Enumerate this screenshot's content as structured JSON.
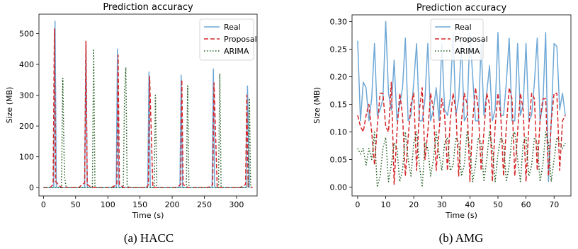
{
  "chart_data": [
    {
      "type": "line",
      "title": "Prediction accuracy",
      "xlabel": "Time (s)",
      "ylabel": "Size (MB)",
      "caption": "(a) HACC",
      "xlim": [
        -7,
        332
      ],
      "ylim": [
        -27,
        563
      ],
      "xticks": [
        0,
        50,
        100,
        150,
        200,
        250,
        300
      ],
      "yticks": [
        0,
        100,
        200,
        300,
        400,
        500
      ],
      "grid": false,
      "legend": "top-right",
      "series": [
        {
          "name": "Real",
          "color": "#6fa8d6",
          "dash": "solid",
          "x": [
            0,
            16,
            18,
            20,
            64,
            66,
            68,
            113,
            115,
            117,
            162,
            164,
            166,
            212,
            214,
            216,
            262,
            264,
            266,
            315,
            317,
            320
          ],
          "y": [
            0,
            0,
            540,
            0,
            0,
            470,
            0,
            0,
            450,
            0,
            0,
            375,
            0,
            0,
            365,
            0,
            0,
            385,
            0,
            0,
            330,
            0
          ]
        },
        {
          "name": "Proposal",
          "color": "#d62728",
          "dash": "dashed",
          "x": [
            0,
            10,
            15,
            17,
            19,
            25,
            30,
            55,
            60,
            64,
            66,
            68,
            75,
            105,
            110,
            114,
            116,
            118,
            125,
            160,
            163,
            165,
            170,
            205,
            210,
            213,
            215,
            217,
            225,
            255,
            260,
            263,
            265,
            270,
            305,
            310,
            314,
            316,
            318,
            325
          ],
          "y": [
            0,
            0,
            10,
            515,
            20,
            5,
            0,
            0,
            10,
            15,
            475,
            10,
            0,
            0,
            5,
            12,
            430,
            10,
            0,
            0,
            10,
            360,
            0,
            0,
            5,
            10,
            350,
            10,
            0,
            0,
            5,
            10,
            340,
            0,
            0,
            5,
            10,
            300,
            5,
            0
          ]
        },
        {
          "name": "ARIMA",
          "color": "#1e5a1e",
          "dash": "dotted",
          "x": [
            0,
            28,
            30,
            32,
            33,
            35,
            37,
            76,
            78,
            80,
            82,
            124,
            126,
            128,
            129,
            130,
            132,
            172,
            174,
            176,
            178,
            222,
            224,
            226,
            228,
            272,
            274,
            276,
            278,
            318,
            320,
            322
          ],
          "y": [
            0,
            0,
            355,
            110,
            30,
            5,
            0,
            0,
            450,
            5,
            0,
            0,
            300,
            390,
            200,
            10,
            0,
            0,
            300,
            5,
            0,
            0,
            330,
            5,
            0,
            0,
            370,
            5,
            0,
            0,
            290,
            0
          ]
        }
      ]
    },
    {
      "type": "line",
      "title": "Prediction accuracy",
      "xlabel": "Time (s)",
      "ylabel": "Size (MB)",
      "caption": "(b) AMG",
      "xlim": [
        -2,
        76
      ],
      "ylim": [
        -0.016,
        0.312
      ],
      "xticks": [
        0,
        10,
        20,
        30,
        40,
        50,
        60,
        70
      ],
      "yticks": [
        0.0,
        0.05,
        0.1,
        0.15,
        0.2,
        0.25,
        0.3
      ],
      "ytick_labels": [
        "0.00",
        "0.05",
        "0.10",
        "0.15",
        "0.20",
        "0.25",
        "0.30"
      ],
      "grid": false,
      "legend": "top-center",
      "series": [
        {
          "name": "Real",
          "color": "#6fa8d6",
          "dash": "solid",
          "x": [
            0,
            1,
            2,
            3,
            4,
            5,
            6,
            7,
            8,
            9,
            10,
            11,
            12,
            13,
            14,
            15,
            16,
            17,
            18,
            19,
            20,
            21,
            22,
            23,
            24,
            25,
            26,
            27,
            28,
            29,
            30,
            31,
            32,
            33,
            34,
            35,
            36,
            37,
            38,
            39,
            40,
            41,
            42,
            43,
            44,
            45,
            46,
            47,
            48,
            49,
            50,
            51,
            52,
            53,
            54,
            55,
            56,
            57,
            58,
            59,
            60,
            61,
            62,
            63,
            64,
            65,
            66,
            67,
            68,
            69,
            70,
            71,
            72,
            73,
            74
          ],
          "y": [
            0.265,
            0.12,
            0.19,
            0.18,
            0.12,
            0.16,
            0.26,
            0.13,
            0.14,
            0.16,
            0.3,
            0.17,
            0.14,
            0.23,
            0.12,
            0.15,
            0.18,
            0.27,
            0.12,
            0.13,
            0.19,
            0.26,
            0.12,
            0.12,
            0.16,
            0.26,
            0.12,
            0.14,
            0.18,
            0.12,
            0.26,
            0.14,
            0.13,
            0.16,
            0.28,
            0.13,
            0.16,
            0.26,
            0.12,
            0.13,
            0.28,
            0.2,
            0.12,
            0.12,
            0.26,
            0.13,
            0.17,
            0.22,
            0.12,
            0.14,
            0.28,
            0.13,
            0.13,
            0.19,
            0.27,
            0.12,
            0.12,
            0.26,
            0.13,
            0.15,
            0.26,
            0.12,
            0.13,
            0.19,
            0.27,
            0.12,
            0.15,
            0.28,
            0.01,
            0.12,
            0.26,
            0.255,
            0.14,
            0.17,
            0.13
          ]
        },
        {
          "name": "Proposal",
          "color": "#d62728",
          "dash": "dashed",
          "x": [
            0,
            1,
            2,
            3,
            4,
            5,
            6,
            7,
            8,
            9,
            10,
            11,
            12,
            13,
            14,
            15,
            16,
            17,
            18,
            19,
            20,
            21,
            22,
            23,
            24,
            25,
            26,
            27,
            28,
            29,
            30,
            31,
            32,
            33,
            34,
            35,
            36,
            37,
            38,
            39,
            40,
            41,
            42,
            43,
            44,
            45,
            46,
            47,
            48,
            49,
            50,
            51,
            52,
            53,
            54,
            55,
            56,
            57,
            58,
            59,
            60,
            61,
            62,
            63,
            64,
            65,
            66,
            67,
            68,
            69,
            70,
            71,
            72,
            73,
            74
          ],
          "y": [
            0.13,
            0.11,
            0.1,
            0.13,
            0.15,
            0.1,
            0.04,
            0.11,
            0.17,
            0.17,
            0.11,
            0.1,
            0.19,
            0.005,
            0.1,
            0.17,
            0.13,
            0.02,
            0.09,
            0.15,
            0.17,
            0.03,
            0.14,
            0.18,
            0.05,
            0.1,
            0.17,
            0.14,
            0.03,
            0.1,
            0.16,
            0.13,
            0.03,
            0.12,
            0.17,
            0.14,
            0.02,
            0.12,
            0.17,
            0.15,
            0.01,
            0.12,
            0.18,
            0.14,
            0.03,
            0.1,
            0.17,
            0.15,
            0.01,
            0.11,
            0.17,
            0.13,
            0.02,
            0.11,
            0.18,
            0.16,
            0.02,
            0.1,
            0.17,
            0.14,
            0.01,
            0.11,
            0.17,
            0.16,
            0.03,
            0.12,
            0.16,
            0.16,
            0.02,
            0.12,
            0.17,
            0.17,
            0.03,
            0.12,
            0.13
          ]
        },
        {
          "name": "ARIMA",
          "color": "#1e5a1e",
          "dash": "dotted",
          "x": [
            0,
            1,
            2,
            3,
            4,
            5,
            6,
            7,
            8,
            9,
            10,
            11,
            12,
            13,
            14,
            15,
            16,
            17,
            18,
            19,
            20,
            21,
            22,
            23,
            24,
            25,
            26,
            27,
            28,
            29,
            30,
            31,
            32,
            33,
            34,
            35,
            36,
            37,
            38,
            39,
            40,
            41,
            42,
            43,
            44,
            45,
            46,
            47,
            48,
            49,
            50,
            51,
            52,
            53,
            54,
            55,
            56,
            57,
            58,
            59,
            60,
            61,
            62,
            63,
            64,
            65,
            66,
            67,
            68,
            69,
            70,
            71,
            72,
            73,
            74
          ],
          "y": [
            0.07,
            0.06,
            0.07,
            0.04,
            0.07,
            0.05,
            0.1,
            0.0,
            0.02,
            0.07,
            0.09,
            0.01,
            0.04,
            0.08,
            0.07,
            0.01,
            0.03,
            0.1,
            0.05,
            0.02,
            0.08,
            0.1,
            0.04,
            0.0,
            0.08,
            0.07,
            0.02,
            0.05,
            0.1,
            0.06,
            0.03,
            0.08,
            0.09,
            0.03,
            0.04,
            0.09,
            0.08,
            0.02,
            0.04,
            0.1,
            0.07,
            0.01,
            0.04,
            0.09,
            0.08,
            0.01,
            0.05,
            0.1,
            0.07,
            0.01,
            0.06,
            0.09,
            0.08,
            0.01,
            0.04,
            0.09,
            0.1,
            0.05,
            0.01,
            0.08,
            0.09,
            0.02,
            0.04,
            0.09,
            0.08,
            0.01,
            0.04,
            0.1,
            0.08,
            0.01,
            0.05,
            0.09,
            0.08,
            0.07,
            0.08
          ]
        }
      ]
    }
  ]
}
